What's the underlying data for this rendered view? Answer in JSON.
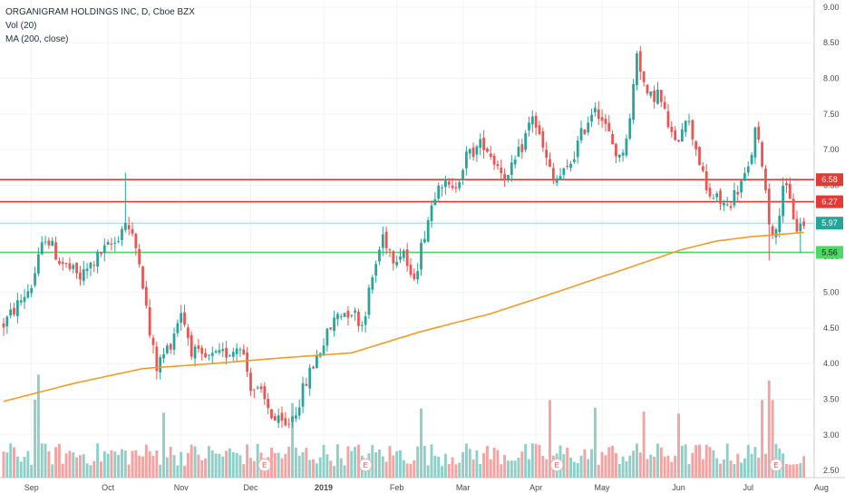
{
  "legend": {
    "symbol": "ORGANIGRAM HOLDINGS INC, D, Cboe BZX",
    "volume": "Vol (20)",
    "ma": "MA (200, close)"
  },
  "colors": {
    "up": "#26a69a",
    "down": "#ef5350",
    "volume_up": "#8ed0c8",
    "volume_down": "#f3a3a1",
    "ma_line": "#f59a23",
    "resistance": "#e53935",
    "support": "#4cd964",
    "last_price": "#26a69a",
    "earnings": "#ef5350"
  },
  "chart_data": {
    "type": "candlestick",
    "ylim": [
      2.4,
      9.1
    ],
    "y_axis_ticks": [
      "9.00",
      "8.50",
      "8.00",
      "7.50",
      "7.00",
      "6.50",
      "6.00",
      "5.50",
      "5.00",
      "4.50",
      "4.00",
      "3.50",
      "3.00",
      "2.50"
    ],
    "x_axis_labels": [
      "Sep",
      "Oct",
      "Nov",
      "Dec",
      "2019",
      "Feb",
      "Mar",
      "Apr",
      "May",
      "Jun",
      "Jul",
      "Aug"
    ],
    "n_bars": 230,
    "x_label_bar_index": [
      8,
      30,
      51,
      71,
      92,
      113,
      132,
      153,
      172,
      194,
      214,
      235
    ],
    "earnings_markers": {
      "label": "E",
      "bar_index": [
        75,
        104,
        159,
        222
      ]
    },
    "horizontal_lines": [
      {
        "price": 6.58,
        "label": "6.58",
        "color": "#e53935"
      },
      {
        "price": 6.27,
        "label": "6.27",
        "color": "#e53935"
      },
      {
        "price": 5.56,
        "label": "5.56",
        "color": "#4cd964"
      }
    ],
    "last_price": {
      "value": 5.97,
      "label": "5.97"
    },
    "price_path_anchors": [
      [
        0,
        4.55
      ],
      [
        8,
        5.1
      ],
      [
        12,
        5.8
      ],
      [
        16,
        5.45
      ],
      [
        22,
        5.2
      ],
      [
        28,
        5.55
      ],
      [
        32,
        5.7
      ],
      [
        35,
        6.0
      ],
      [
        39,
        5.5
      ],
      [
        42,
        4.4
      ],
      [
        44,
        3.95
      ],
      [
        48,
        4.3
      ],
      [
        51,
        4.75
      ],
      [
        54,
        4.2
      ],
      [
        57,
        4.05
      ],
      [
        62,
        4.1
      ],
      [
        66,
        4.2
      ],
      [
        68,
        4.3
      ],
      [
        71,
        3.7
      ],
      [
        74,
        3.55
      ],
      [
        78,
        3.2
      ],
      [
        81,
        3.1
      ],
      [
        84,
        3.35
      ],
      [
        87,
        3.75
      ],
      [
        90,
        4.1
      ],
      [
        93,
        4.4
      ],
      [
        96,
        4.7
      ],
      [
        100,
        4.75
      ],
      [
        103,
        4.55
      ],
      [
        106,
        5.2
      ],
      [
        109,
        5.8
      ],
      [
        112,
        5.5
      ],
      [
        115,
        5.6
      ],
      [
        117,
        5.15
      ],
      [
        119,
        5.4
      ],
      [
        121,
        5.85
      ],
      [
        125,
        6.6
      ],
      [
        129,
        6.4
      ],
      [
        133,
        6.9
      ],
      [
        138,
        7.1
      ],
      [
        141,
        6.85
      ],
      [
        145,
        6.6
      ],
      [
        149,
        7.05
      ],
      [
        152,
        7.5
      ],
      [
        155,
        7.0
      ],
      [
        158,
        6.55
      ],
      [
        162,
        6.7
      ],
      [
        166,
        7.2
      ],
      [
        170,
        7.65
      ],
      [
        174,
        7.2
      ],
      [
        177,
        6.85
      ],
      [
        180,
        7.4
      ],
      [
        182,
        8.4
      ],
      [
        185,
        7.7
      ],
      [
        188,
        7.8
      ],
      [
        190,
        7.5
      ],
      [
        193,
        7.05
      ],
      [
        196,
        7.5
      ],
      [
        199,
        7.05
      ],
      [
        202,
        6.4
      ],
      [
        205,
        6.3
      ],
      [
        208,
        6.2
      ],
      [
        211,
        6.45
      ],
      [
        214,
        6.7
      ],
      [
        216,
        7.25
      ],
      [
        218,
        6.85
      ],
      [
        220,
        6.0
      ],
      [
        222,
        5.8
      ],
      [
        224,
        6.55
      ],
      [
        226,
        6.25
      ],
      [
        228,
        5.9
      ],
      [
        230,
        5.97
      ]
    ],
    "ma200_anchors": [
      [
        0,
        3.47
      ],
      [
        20,
        3.72
      ],
      [
        40,
        3.93
      ],
      [
        60,
        4.0
      ],
      [
        80,
        4.08
      ],
      [
        100,
        4.15
      ],
      [
        120,
        4.45
      ],
      [
        140,
        4.7
      ],
      [
        160,
        5.02
      ],
      [
        180,
        5.35
      ],
      [
        195,
        5.6
      ],
      [
        205,
        5.72
      ],
      [
        215,
        5.78
      ],
      [
        225,
        5.82
      ],
      [
        230,
        5.84
      ]
    ],
    "volume_scale_max": 5.6,
    "volume_note": "relative volume per bar, 0-5.6 scale"
  }
}
